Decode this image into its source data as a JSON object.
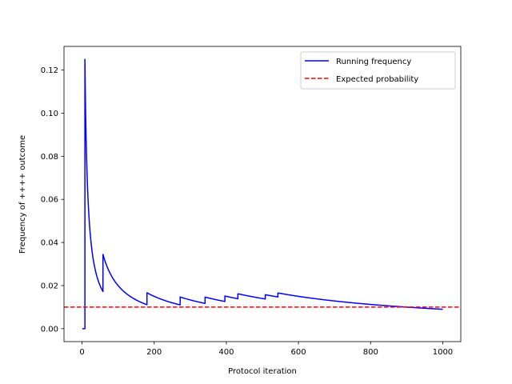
{
  "chart_data": {
    "type": "line",
    "title": "",
    "xlabel": "Protocol iteration",
    "ylabel": "Frequency of ++++ outcome",
    "xlim": [
      -50,
      1050
    ],
    "ylim": [
      -0.006,
      0.131
    ],
    "x_ticks": [
      0,
      200,
      400,
      600,
      800,
      1000
    ],
    "y_ticks": [
      0.0,
      0.02,
      0.04,
      0.06,
      0.08,
      0.1,
      0.12
    ],
    "x_tick_labels": [
      "0",
      "200",
      "400",
      "600",
      "800",
      "1000"
    ],
    "y_tick_labels": [
      "0.00",
      "0.02",
      "0.04",
      "0.06",
      "0.08",
      "0.10",
      "0.12"
    ],
    "grid": false,
    "legend_position": "upper-right",
    "series": [
      {
        "name": "Running frequency",
        "color": "#0000ff",
        "style": "solid",
        "events": [
          8,
          58,
          180,
          272,
          341,
          396,
          432,
          508,
          543
        ]
      },
      {
        "name": "Expected probability",
        "color": "#ff0000",
        "style": "dashed",
        "y": 0.01
      }
    ]
  }
}
